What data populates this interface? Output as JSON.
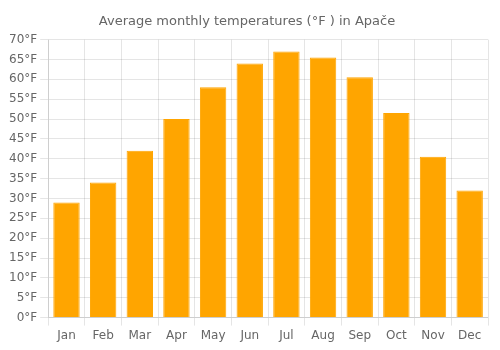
{
  "chart_data": {
    "type": "bar",
    "title": "Average monthly temperatures (°F ) in Apače",
    "categories": [
      "Jan",
      "Feb",
      "Mar",
      "Apr",
      "May",
      "Jun",
      "Jul",
      "Aug",
      "Sep",
      "Oct",
      "Nov",
      "Dec"
    ],
    "values": [
      29,
      34,
      42,
      50,
      58,
      64,
      67,
      65.5,
      60.5,
      51.5,
      40.5,
      32
    ],
    "color": "#FFA500",
    "ylim": [
      0,
      70
    ],
    "yticks": [
      {
        "value": 0,
        "label": "0°F"
      },
      {
        "value": 5,
        "label": "5°F"
      },
      {
        "value": 10,
        "label": "10°F"
      },
      {
        "value": 15,
        "label": "15°F"
      },
      {
        "value": 20,
        "label": "20°F"
      },
      {
        "value": 25,
        "label": "25°F"
      },
      {
        "value": 30,
        "label": "30°F"
      },
      {
        "value": 35,
        "label": "35°F"
      },
      {
        "value": 40,
        "label": "40°F"
      },
      {
        "value": 45,
        "label": "45°F"
      },
      {
        "value": 50,
        "label": "50°F"
      },
      {
        "value": 55,
        "label": "55°F"
      },
      {
        "value": 60,
        "label": "60°F"
      },
      {
        "value": 65,
        "label": "65°F"
      },
      {
        "value": 70,
        "label": "70°F"
      }
    ],
    "grid": true
  }
}
